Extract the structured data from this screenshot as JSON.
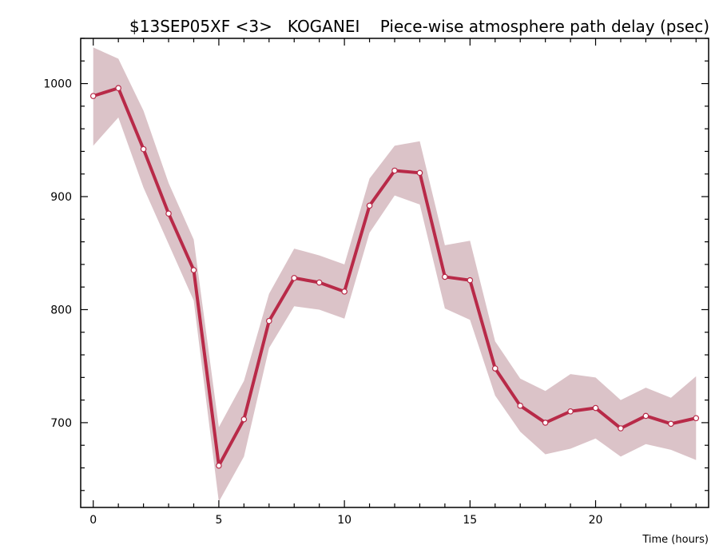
{
  "chart_data": {
    "type": "line",
    "title": "$13SEP05XF <3>   KOGANEI    Piece-wise atmosphere path delay (psec)",
    "xlabel": "Time (hours)",
    "ylabel": "",
    "xlim": [
      -0.5,
      24.5
    ],
    "ylim": [
      625,
      1040
    ],
    "xticks": [
      0,
      5,
      10,
      15,
      20
    ],
    "yticks": [
      700,
      800,
      900,
      1000
    ],
    "x": [
      0,
      1,
      2,
      3,
      4,
      5,
      6,
      7,
      8,
      9,
      10,
      11,
      12,
      13,
      14,
      15,
      16,
      17,
      18,
      19,
      20,
      21,
      22,
      23,
      24
    ],
    "series": [
      {
        "values": [
          989,
          996,
          942,
          885,
          835,
          662,
          703,
          790,
          828,
          824,
          816,
          892,
          923,
          921,
          829,
          826,
          748,
          715,
          700,
          710,
          713,
          695,
          706,
          699,
          704
        ],
        "upper": [
          1032,
          1022,
          976,
          912,
          862,
          696,
          737,
          814,
          854,
          848,
          840,
          916,
          945,
          949,
          857,
          861,
          772,
          739,
          728,
          743,
          740,
          720,
          731,
          722,
          741
        ],
        "lower": [
          945,
          970,
          908,
          858,
          808,
          630,
          670,
          766,
          803,
          800,
          792,
          868,
          901,
          893,
          801,
          791,
          724,
          692,
          672,
          677,
          686,
          670,
          681,
          676,
          667
        ]
      }
    ],
    "colors": {
      "line": "#b82a48",
      "band": "#dbc3c8",
      "marker_fill": "#ffffff",
      "axis": "#000000"
    },
    "grid": false,
    "legend": "none"
  }
}
